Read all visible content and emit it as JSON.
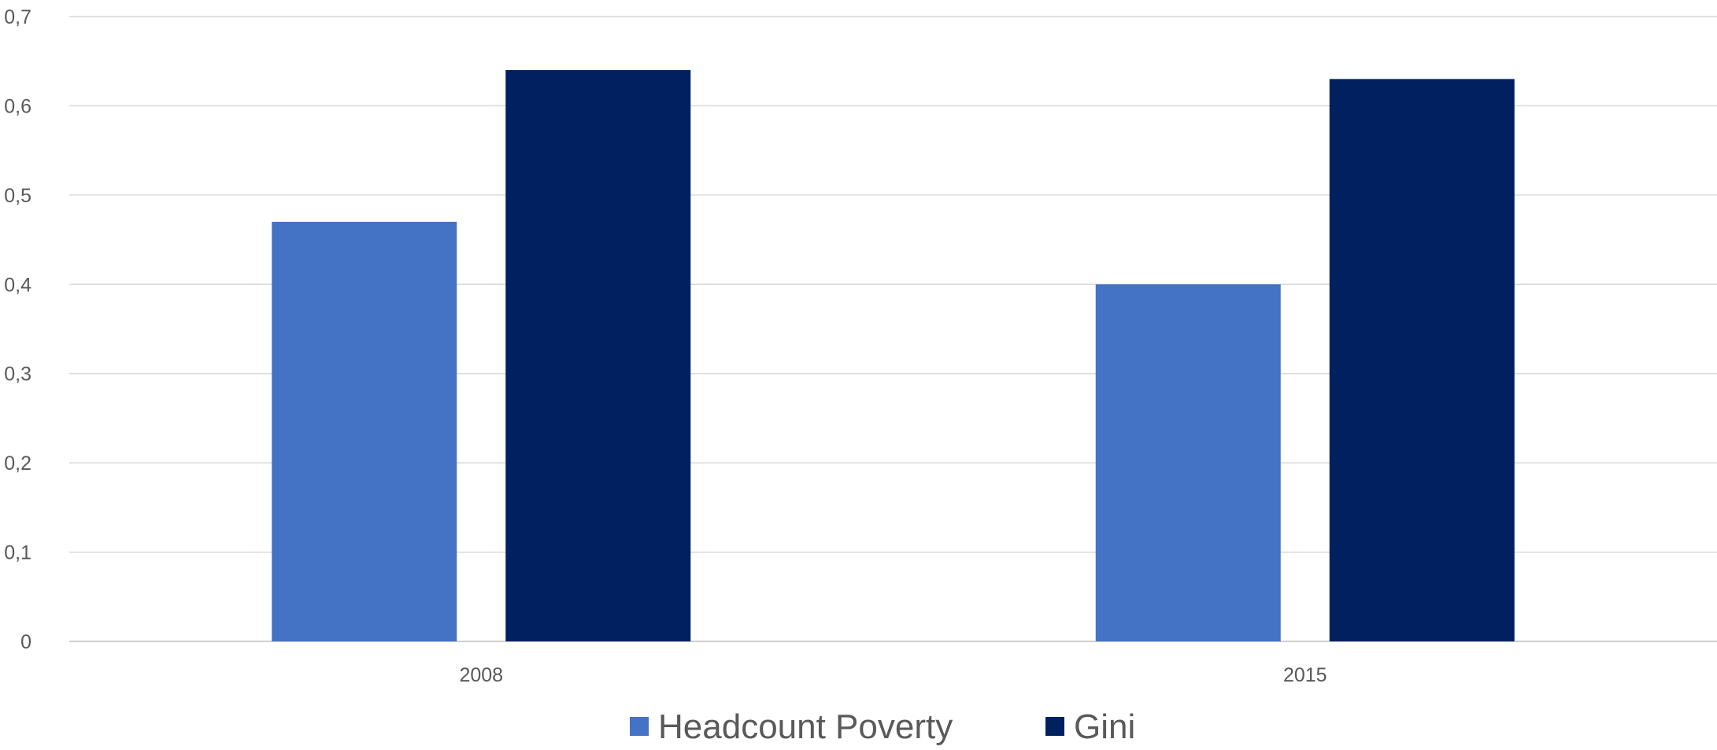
{
  "chart_data": {
    "type": "bar",
    "categories": [
      "2008",
      "2015"
    ],
    "series": [
      {
        "name": "Headcount Poverty",
        "values": [
          0.47,
          0.4
        ],
        "color": "#4472c4"
      },
      {
        "name": "Gini",
        "values": [
          0.64,
          0.63
        ],
        "color": "#002060"
      }
    ],
    "title": "",
    "xlabel": "",
    "ylabel": "",
    "ylim": [
      0,
      0.7
    ],
    "yticks": [
      {
        "value": 0,
        "label": "0"
      },
      {
        "value": 0.1,
        "label": "0,1"
      },
      {
        "value": 0.2,
        "label": "0,2"
      },
      {
        "value": 0.3,
        "label": "0,3"
      },
      {
        "value": 0.4,
        "label": "0,4"
      },
      {
        "value": 0.5,
        "label": "0,5"
      },
      {
        "value": 0.6,
        "label": "0,6"
      },
      {
        "value": 0.7,
        "label": "0,7"
      }
    ],
    "grid": true,
    "legend_position": "bottom"
  }
}
